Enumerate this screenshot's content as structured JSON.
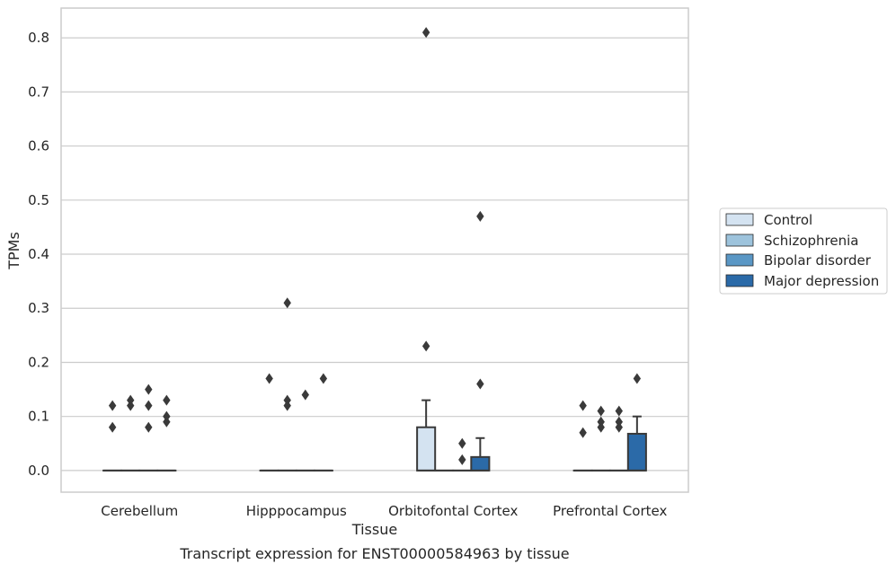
{
  "chart_data": {
    "type": "box",
    "title": "",
    "caption": "Transcript expression for ENST00000584963 by tissue",
    "xlabel": "Tissue",
    "ylabel": "TPMs",
    "ylim": [
      -0.04,
      0.855
    ],
    "yticks": [
      0.0,
      0.1,
      0.2,
      0.3,
      0.4,
      0.5,
      0.6,
      0.7,
      0.8
    ],
    "ytick_labels": [
      "0.0",
      "0.1",
      "0.2",
      "0.3",
      "0.4",
      "0.5",
      "0.6",
      "0.7",
      "0.8"
    ],
    "grid": "horizontal",
    "legend_position": "right",
    "categories": [
      "Cerebellum",
      "Hipppocampus",
      "Orbitofontal Cortex",
      "Prefrontal Cortex"
    ],
    "series": [
      {
        "name": "Control",
        "color": "#d4e3f1",
        "boxes": [
          {
            "q1": 0,
            "median": 0,
            "q3": 0,
            "whisker_low": 0,
            "whisker_high": 0,
            "outliers": [
              0.08,
              0.12
            ]
          },
          {
            "q1": 0,
            "median": 0,
            "q3": 0,
            "whisker_low": 0,
            "whisker_high": 0,
            "outliers": [
              0.17
            ]
          },
          {
            "q1": 0,
            "median": 0,
            "q3": 0.08,
            "whisker_low": 0,
            "whisker_high": 0.13,
            "outliers": [
              0.23,
              0.81
            ]
          },
          {
            "q1": 0,
            "median": 0,
            "q3": 0,
            "whisker_low": 0,
            "whisker_high": 0,
            "outliers": [
              0.07,
              0.12
            ]
          }
        ]
      },
      {
        "name": "Schizophrenia",
        "color": "#9dc3dc",
        "boxes": [
          {
            "q1": 0,
            "median": 0,
            "q3": 0,
            "whisker_low": 0,
            "whisker_high": 0,
            "outliers": [
              0.12,
              0.13
            ]
          },
          {
            "q1": 0,
            "median": 0,
            "q3": 0,
            "whisker_low": 0,
            "whisker_high": 0,
            "outliers": [
              0.12,
              0.13,
              0.31
            ]
          },
          {
            "q1": 0,
            "median": 0,
            "q3": 0,
            "whisker_low": 0,
            "whisker_high": 0,
            "outliers": []
          },
          {
            "q1": 0,
            "median": 0,
            "q3": 0,
            "whisker_low": 0,
            "whisker_high": 0,
            "outliers": [
              0.08,
              0.09,
              0.11
            ]
          }
        ]
      },
      {
        "name": "Bipolar disorder",
        "color": "#5a97c5",
        "boxes": [
          {
            "q1": 0,
            "median": 0,
            "q3": 0,
            "whisker_low": 0,
            "whisker_high": 0,
            "outliers": [
              0.08,
              0.12,
              0.15
            ]
          },
          {
            "q1": 0,
            "median": 0,
            "q3": 0,
            "whisker_low": 0,
            "whisker_high": 0,
            "outliers": [
              0.14
            ]
          },
          {
            "q1": 0,
            "median": 0,
            "q3": 0,
            "whisker_low": 0,
            "whisker_high": 0,
            "outliers": [
              0.02,
              0.05
            ]
          },
          {
            "q1": 0,
            "median": 0,
            "q3": 0,
            "whisker_low": 0,
            "whisker_high": 0,
            "outliers": [
              0.08,
              0.09,
              0.11
            ]
          }
        ]
      },
      {
        "name": "Major depression",
        "color": "#2b6aa8",
        "boxes": [
          {
            "q1": 0,
            "median": 0,
            "q3": 0,
            "whisker_low": 0,
            "whisker_high": 0,
            "outliers": [
              0.09,
              0.1,
              0.13
            ]
          },
          {
            "q1": 0,
            "median": 0,
            "q3": 0,
            "whisker_low": 0,
            "whisker_high": 0,
            "outliers": [
              0.17
            ]
          },
          {
            "q1": 0,
            "median": 0,
            "q3": 0.025,
            "whisker_low": 0,
            "whisker_high": 0.06,
            "outliers": [
              0.16,
              0.47
            ]
          },
          {
            "q1": 0,
            "median": 0,
            "q3": 0.068,
            "whisker_low": 0,
            "whisker_high": 0.1,
            "outliers": [
              0.17
            ]
          }
        ]
      }
    ]
  }
}
